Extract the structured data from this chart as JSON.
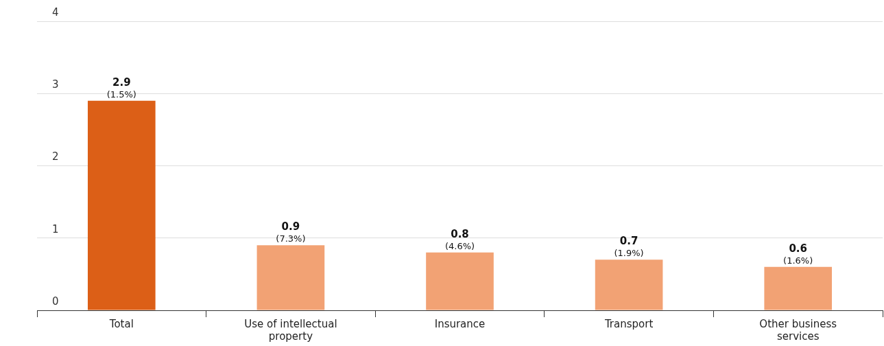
{
  "chart_data": {
    "type": "bar",
    "categories": [
      "Total",
      "Use of intellectual property",
      "Insurance",
      "Transport",
      "Other business services"
    ],
    "values": [
      2.9,
      0.9,
      0.8,
      0.7,
      0.6
    ],
    "colors": [
      "#dc5f17",
      "#f2a274",
      "#f2a274",
      "#f2a274",
      "#f2a274"
    ],
    "value_labels": [
      "2.9 (1.5%)",
      "0.9 (7.3%)",
      "0.8 (4.6%)",
      "0.7 (1.9%)",
      "0.6 (1.6%)"
    ],
    "ylim": [
      0,
      4
    ],
    "yticks": [
      0,
      1,
      2,
      3,
      4
    ],
    "grid": "y"
  }
}
